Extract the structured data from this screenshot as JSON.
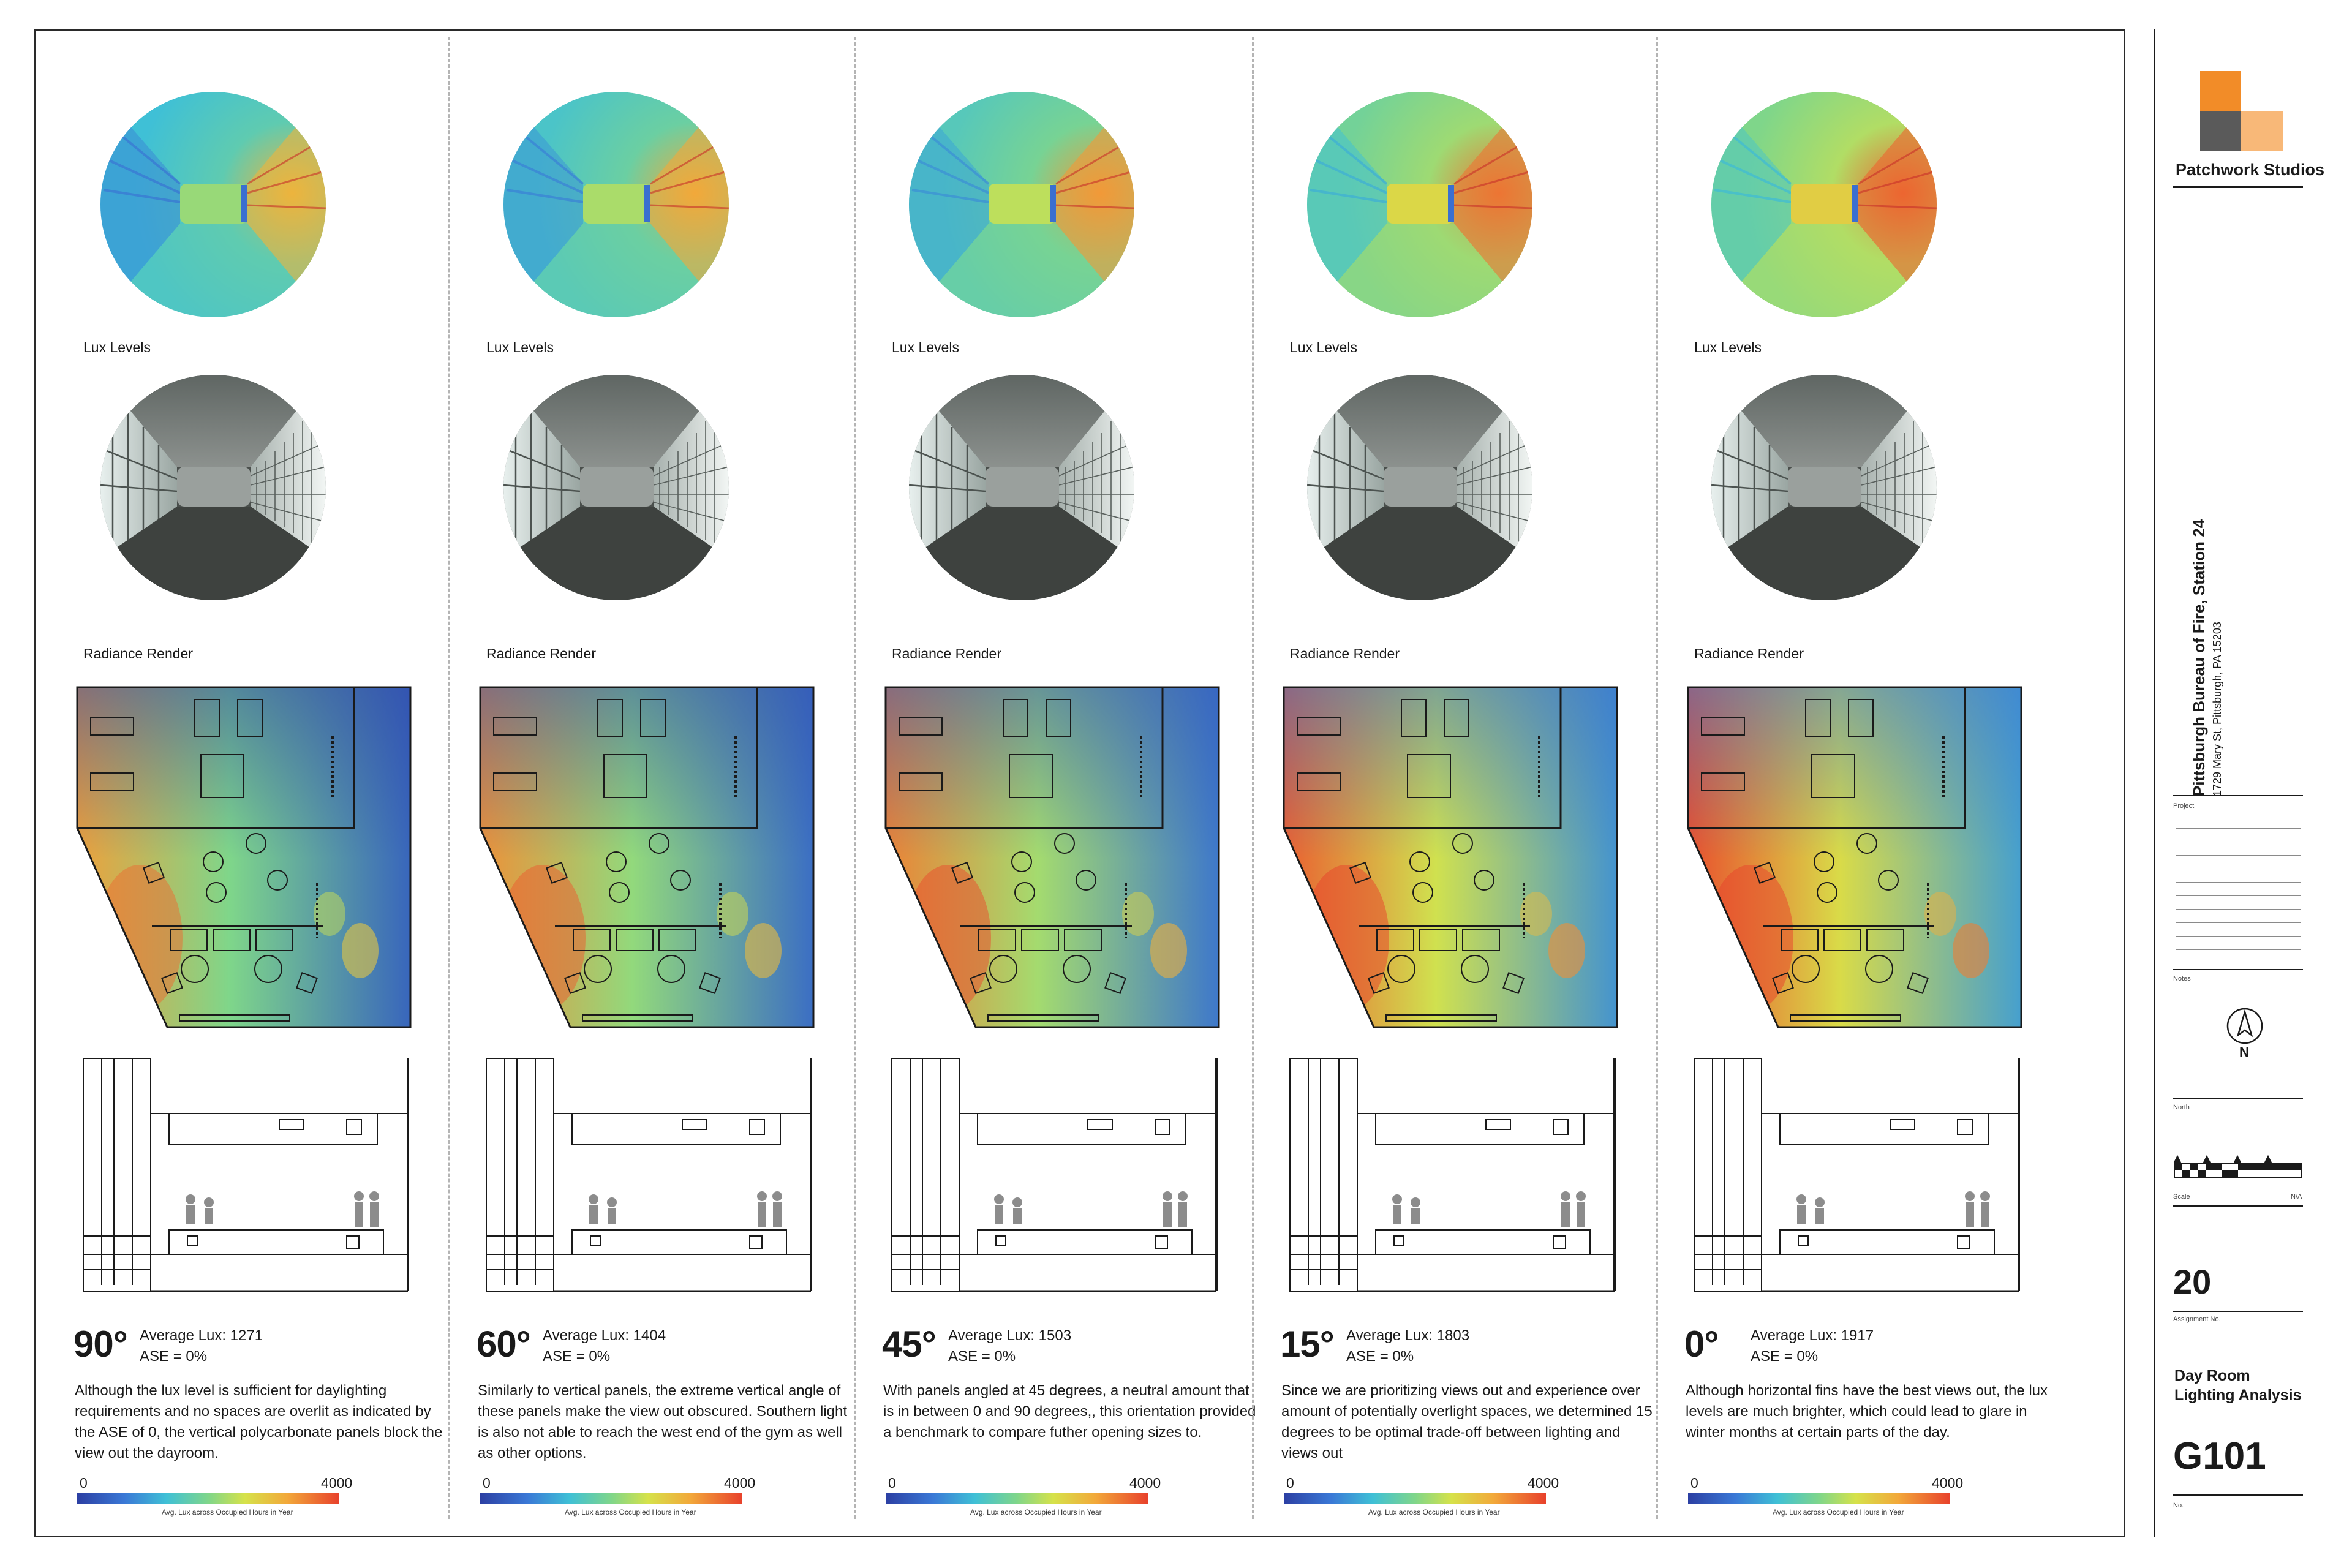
{
  "colors": {
    "legend_low": "#2c3fa3",
    "legend_high": "#e8412c",
    "logo_dark": "#5a5a5a",
    "logo_orange": "#f28c28",
    "logo_light_orange": "#f8b878"
  },
  "icons": [
    "north-arrow-icon",
    "scale-bar-icon",
    "firm-logo-icon"
  ],
  "labels": {
    "lux": "Lux Levels",
    "render": "Radiance Render",
    "legend_min": "0",
    "legend_max": "4000",
    "legend_caption": "Avg. Lux across Occupied Hours in Year"
  },
  "options": [
    {
      "angle": "90°",
      "avg_lux": "Average Lux:  1271",
      "ase": "ASE = 0%",
      "description": "Although the lux level is sufficient for daylighting requirements and no spaces are overlit as indicated by the ASE of 0, the vertical polycarbonate panels block the view out the dayroom.",
      "brightness": 0.32
    },
    {
      "angle": "60°",
      "avg_lux": "Average Lux:  1404",
      "ase": "ASE = 0%",
      "description": "Similarly to vertical panels, the extreme vertical angle of these panels make the view out obscured. Southern light is also not able to reach the west end of the gym as well as other options.",
      "brightness": 0.35
    },
    {
      "angle": "45°",
      "avg_lux": "Average Lux:  1503",
      "ase": "ASE = 0%",
      "description": "With panels angled at 45 degrees, a neutral amount that is in between 0 and 90 degrees,, this orientation provided a benchmark to compare futher opening sizes to.",
      "brightness": 0.38
    },
    {
      "angle": "15°",
      "avg_lux": "Average Lux:  1803",
      "ase": "ASE = 0%",
      "description": "Since we are prioritizing views out and experience over amount of potentially overlight spaces, we determined 15 degrees to be optimal trade-off between lighting and views out",
      "brightness": 0.45
    },
    {
      "angle": "0°",
      "avg_lux": "Average Lux:  1917",
      "ase": "ASE = 0%",
      "description": "Although horizontal fins have the best views out, the lux levels are much brighter, which could lead to glare in winter months at certain parts of the day.",
      "brightness": 0.48
    }
  ],
  "title_block": {
    "firm": "Patchwork Studios",
    "project_title": "Pittsburgh Bureau of Fire, Station 24",
    "project_address": "1729 Mary St, Pittsburgh, PA 15203",
    "project_label": "Project",
    "notes_label": "Notes",
    "north_letter": "N",
    "north_label": "North",
    "scale_label": "Scale",
    "scale_value": "N/A",
    "assignment_no": "20",
    "assignment_label": "Assignment No.",
    "sheet_title": "Day Room Lighting Analysis",
    "sheet_no": "G101",
    "no_label": "No."
  }
}
